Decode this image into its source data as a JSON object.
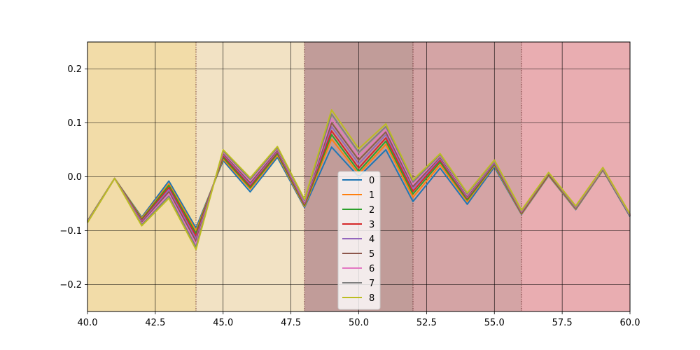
{
  "chart_data": {
    "type": "line",
    "xlim": [
      40,
      60
    ],
    "ylim": [
      -0.25,
      0.25
    ],
    "x_ticks": [
      40.0,
      42.5,
      45.0,
      47.5,
      50.0,
      52.5,
      55.0,
      57.5,
      60.0
    ],
    "x_tick_labels": [
      "40.0",
      "42.5",
      "45.0",
      "47.5",
      "50.0",
      "52.5",
      "55.0",
      "57.5",
      "60.0"
    ],
    "y_ticks": [
      -0.2,
      -0.1,
      0.0,
      0.1,
      0.2
    ],
    "y_tick_labels": [
      "−0.2",
      "−0.1",
      "0.0",
      "0.1",
      "0.2"
    ],
    "grid": true,
    "legend_position": "lower-center",
    "x": [
      40,
      41,
      42,
      43,
      44,
      45,
      46,
      47,
      48,
      49,
      50,
      51,
      52,
      53,
      54,
      55,
      56,
      57,
      58,
      59,
      60
    ],
    "series": [
      {
        "name": "0",
        "color": "#1f77b4",
        "values": [
          -0.082,
          -0.003,
          -0.075,
          -0.008,
          -0.095,
          0.03,
          -0.028,
          0.036,
          -0.057,
          0.055,
          0.0,
          0.05,
          -0.046,
          0.016,
          -0.051,
          0.018,
          -0.07,
          0.002,
          -0.061,
          0.012,
          -0.074
        ]
      },
      {
        "name": "1",
        "color": "#ff7f0e",
        "values": [
          -0.082,
          -0.003,
          -0.077,
          -0.013,
          -0.1,
          0.033,
          -0.023,
          0.04,
          -0.055,
          0.07,
          0.005,
          0.06,
          -0.038,
          0.022,
          -0.046,
          0.021,
          -0.069,
          0.003,
          -0.06,
          0.013,
          -0.073
        ]
      },
      {
        "name": "2",
        "color": "#2ca02c",
        "values": [
          -0.082,
          -0.003,
          -0.079,
          -0.016,
          -0.105,
          0.036,
          -0.02,
          0.043,
          -0.053,
          0.078,
          0.01,
          0.066,
          -0.032,
          0.027,
          -0.043,
          0.023,
          -0.068,
          0.004,
          -0.059,
          0.014,
          -0.073
        ]
      },
      {
        "name": "3",
        "color": "#d62728",
        "values": [
          -0.083,
          -0.003,
          -0.081,
          -0.02,
          -0.11,
          0.039,
          -0.017,
          0.046,
          -0.051,
          0.085,
          0.016,
          0.072,
          -0.027,
          0.031,
          -0.04,
          0.025,
          -0.067,
          0.005,
          -0.058,
          0.015,
          -0.072
        ]
      },
      {
        "name": "4",
        "color": "#9467bd",
        "values": [
          -0.083,
          -0.003,
          -0.083,
          -0.024,
          -0.115,
          0.042,
          -0.014,
          0.048,
          -0.049,
          0.093,
          0.024,
          0.078,
          -0.022,
          0.034,
          -0.038,
          0.026,
          -0.066,
          0.006,
          -0.058,
          0.015,
          -0.072
        ]
      },
      {
        "name": "5",
        "color": "#8c564b",
        "values": [
          -0.084,
          -0.003,
          -0.085,
          -0.028,
          -0.12,
          0.044,
          -0.011,
          0.05,
          -0.047,
          0.1,
          0.031,
          0.083,
          -0.018,
          0.037,
          -0.036,
          0.028,
          -0.065,
          0.006,
          -0.057,
          0.016,
          -0.071
        ]
      },
      {
        "name": "6",
        "color": "#e377c2",
        "values": [
          -0.084,
          -0.003,
          -0.087,
          -0.032,
          -0.125,
          0.046,
          -0.008,
          0.052,
          -0.046,
          0.108,
          0.038,
          0.088,
          -0.014,
          0.039,
          -0.034,
          0.029,
          -0.064,
          0.007,
          -0.056,
          0.016,
          -0.071
        ]
      },
      {
        "name": "7",
        "color": "#7f7f7f",
        "values": [
          -0.085,
          -0.003,
          -0.089,
          -0.036,
          -0.13,
          0.048,
          -0.005,
          0.054,
          -0.044,
          0.116,
          0.045,
          0.093,
          -0.01,
          0.041,
          -0.032,
          0.03,
          -0.063,
          0.007,
          -0.055,
          0.017,
          -0.07
        ]
      },
      {
        "name": "8",
        "color": "#bcbd22",
        "values": [
          -0.085,
          -0.003,
          -0.091,
          -0.04,
          -0.135,
          0.05,
          -0.002,
          0.056,
          -0.042,
          0.124,
          0.052,
          0.098,
          -0.006,
          0.043,
          -0.03,
          0.031,
          -0.062,
          0.008,
          -0.054,
          0.017,
          -0.069
        ]
      }
    ],
    "background_bands": [
      {
        "x_start": 40,
        "x_end": 44,
        "color": "#f2dca8"
      },
      {
        "x_start": 44,
        "x_end": 48,
        "color": "#f2e2c4"
      },
      {
        "x_start": 48,
        "x_end": 52,
        "color": "#c19c99"
      },
      {
        "x_start": 52,
        "x_end": 56,
        "color": "#d4a4a5"
      },
      {
        "x_start": 56,
        "x_end": 60,
        "color": "#e9adb1"
      }
    ],
    "band_boundaries": [
      44,
      48,
      52,
      56
    ]
  }
}
